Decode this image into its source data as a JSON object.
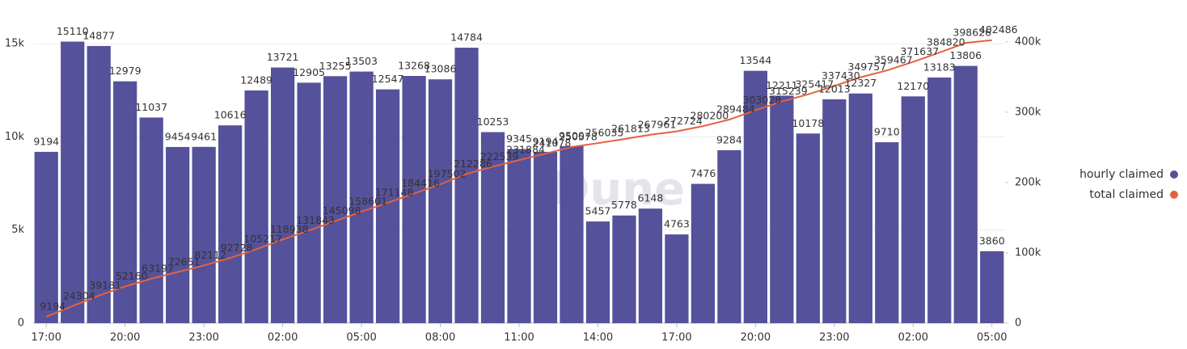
{
  "chart_data": {
    "type": "bar_line",
    "watermark": "Dune",
    "categories": [
      "17:00",
      null,
      null,
      "20:00",
      null,
      null,
      "23:00",
      null,
      null,
      "02:00",
      null,
      null,
      "05:00",
      null,
      null,
      "08:00",
      null,
      null,
      "11:00",
      null,
      null,
      "14:00",
      null,
      null,
      "17:00",
      null,
      null,
      "20:00",
      null,
      null,
      "23:00",
      null,
      null,
      "02:00",
      null,
      null,
      "05:00"
    ],
    "series": [
      {
        "name": "hourly claimed",
        "color": "#55519a",
        "axis": "y",
        "values": [
          9194,
          15110,
          14877,
          12979,
          11037,
          9454,
          9461,
          10616,
          12489,
          13721,
          12905,
          13255,
          13503,
          12547,
          13268,
          13086,
          14784,
          10253,
          9345,
          9194,
          9500,
          5457,
          5778,
          6148,
          4763,
          7476,
          9284,
          13544,
          12211,
          10178,
          12013,
          12327,
          9710,
          12170,
          13183,
          13806,
          3860
        ]
      },
      {
        "name": "total claimed",
        "color": "#e2623f",
        "axis": "y2",
        "values": [
          9194,
          24304,
          39181,
          52160,
          63197,
          72651,
          82112,
          92728,
          105217,
          118938,
          131843,
          145098,
          158601,
          171148,
          184416,
          197502,
          212286,
          222539,
          231884,
          241078,
          250578,
          256035,
          261813,
          267961,
          272724,
          280200,
          289484,
          303028,
          315239,
          325417,
          337430,
          349757,
          359467,
          371637,
          384820,
          398626,
          402486
        ]
      }
    ],
    "ylim": [
      0,
      16000
    ],
    "yticks": [
      0,
      {
        "value": 5000,
        "label": "5k"
      },
      {
        "value": 10000,
        "label": "10k"
      },
      {
        "value": 15000,
        "label": "15k"
      }
    ],
    "y2lim": [
      0,
      424000
    ],
    "y2ticks": [
      0,
      {
        "value": 100000,
        "label": "100k"
      },
      {
        "value": 200000,
        "label": "200k"
      },
      {
        "value": 300000,
        "label": "300k"
      },
      {
        "value": 400000,
        "label": "400k"
      }
    ],
    "grid": true,
    "legend": "right"
  }
}
